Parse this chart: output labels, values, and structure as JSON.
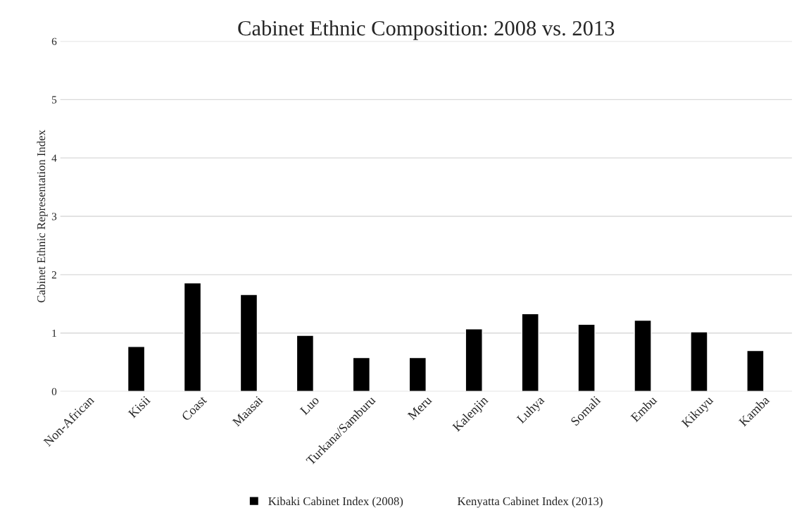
{
  "chart_data": {
    "type": "bar",
    "title": "Cabinet Ethnic Composition: 2008 vs. 2013",
    "ylabel": "Cabinet Ethnic Representation Index",
    "categories": [
      "Non-African",
      "Kisii",
      "Coast",
      "Maasai",
      "Luo",
      "Turkana/Samburu",
      "Meru",
      "Kalenjin",
      "Luhya",
      "Somali",
      "Embu",
      "Kikuyu",
      "Kamba"
    ],
    "series": [
      {
        "name": "Kibaki Cabinet Index (2008)",
        "color": "#000000",
        "values": [
          null,
          0.77,
          1.86,
          1.66,
          0.96,
          0.58,
          0.58,
          1.07,
          1.33,
          1.15,
          1.22,
          1.02,
          0.7
        ]
      },
      {
        "name": "Kenyatta Cabinet Index (2013)",
        "values": [
          null,
          null,
          null,
          null,
          null,
          null,
          null,
          null,
          null,
          null,
          null,
          null,
          null
        ]
      }
    ],
    "ylim": [
      0,
      6
    ],
    "yticks": [
      0,
      1,
      2,
      3,
      4,
      5,
      6
    ],
    "grid": "y",
    "legend": "bottom"
  }
}
